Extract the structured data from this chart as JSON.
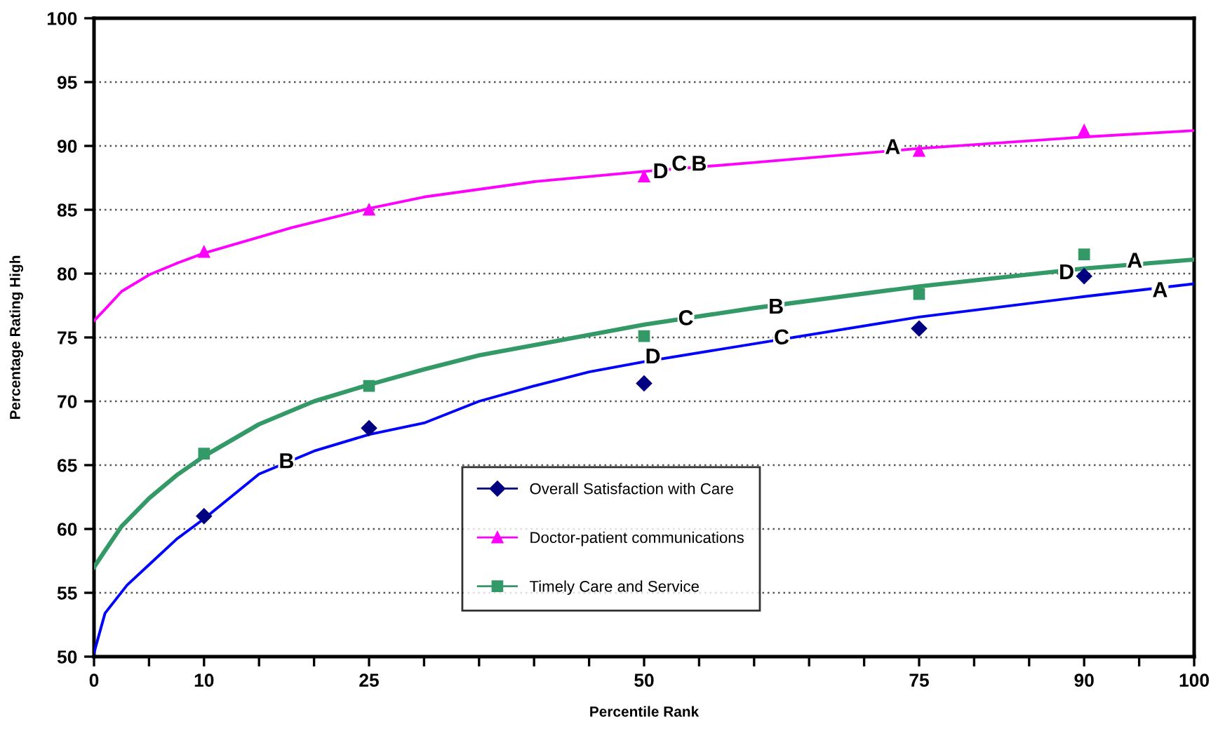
{
  "chart_data": {
    "type": "scatter",
    "xlabel": "Percentile Rank",
    "ylabel": "Percentage Rating High",
    "xlim": [
      0,
      100
    ],
    "ylim": [
      50,
      100
    ],
    "xticks": [
      0,
      {
        "value": 5,
        "label": null
      },
      10,
      {
        "value": 15,
        "label": null
      },
      {
        "value": 20,
        "label": null
      },
      25,
      {
        "value": 30,
        "label": null
      },
      {
        "value": 35,
        "label": null
      },
      {
        "value": 40,
        "label": null
      },
      {
        "value": 45,
        "label": null
      },
      50,
      {
        "value": 55,
        "label": null
      },
      {
        "value": 60,
        "label": null
      },
      {
        "value": 65,
        "label": null
      },
      {
        "value": 70,
        "label": null
      },
      75,
      {
        "value": 80,
        "label": null
      },
      {
        "value": 85,
        "label": null
      },
      90,
      {
        "value": 95,
        "label": null
      },
      100
    ],
    "yticks": [
      50,
      55,
      60,
      65,
      70,
      75,
      80,
      85,
      90,
      95,
      100
    ],
    "grid": "y",
    "legend": "bottom",
    "series": [
      {
        "name": "Overall Satisfaction with Care",
        "marker": "diamond",
        "color": "#000080",
        "x": [
          10,
          25,
          50,
          75,
          90
        ],
        "values": [
          61.0,
          67.9,
          71.4,
          75.7,
          79.8
        ]
      },
      {
        "name": "Doctor-patient communications",
        "marker": "triangle",
        "color": "#ff00ff",
        "x": [
          10,
          25,
          50,
          75,
          90
        ],
        "values": [
          81.7,
          85.0,
          87.6,
          89.6,
          91.2
        ]
      },
      {
        "name": "Timely Care and Service",
        "marker": "square",
        "color": "#339966",
        "x": [
          10,
          25,
          50,
          75,
          90
        ],
        "values": [
          65.9,
          71.2,
          75.1,
          78.4,
          81.5
        ]
      },
      {
        "type": "line",
        "marker": "none",
        "line_style": "solid",
        "color": "#0000ff",
        "x": [
          0,
          1,
          3,
          5,
          7.5,
          10,
          15,
          20,
          25,
          30,
          35,
          40,
          45,
          50,
          75,
          90,
          100
        ],
        "values": [
          50.3,
          53.4,
          55.6,
          57.2,
          59.2,
          60.8,
          64.3,
          66.1,
          67.4,
          68.3,
          70.0,
          71.2,
          72.3,
          73.1,
          76.6,
          78.2,
          79.2
        ]
      },
      {
        "type": "line",
        "marker": "none",
        "line_style": "solid",
        "color": "#ff00ff",
        "x": [
          0,
          1,
          2.5,
          5,
          7.5,
          10,
          18,
          25,
          30,
          40,
          50,
          60,
          75,
          90,
          100
        ],
        "values": [
          76.3,
          77.2,
          78.6,
          79.9,
          80.8,
          81.6,
          83.6,
          85.1,
          86.0,
          87.2,
          88.0,
          88.7,
          89.8,
          90.7,
          91.2
        ]
      },
      {
        "type": "line",
        "marker": "none",
        "line_style": "solid",
        "color": "#339966",
        "x": [
          0,
          1,
          2.5,
          5,
          7.5,
          10,
          15,
          20,
          25,
          30,
          35,
          40,
          50,
          60,
          75,
          90,
          100
        ],
        "values": [
          57.0,
          58.3,
          60.2,
          62.4,
          64.2,
          65.7,
          68.2,
          70.0,
          71.3,
          72.5,
          73.6,
          74.4,
          76.0,
          77.3,
          79.0,
          80.4,
          81.1
        ]
      }
    ],
    "annotations": [
      {
        "text": "D",
        "x": 51.5,
        "y": 87.9
      },
      {
        "text": "C",
        "x": 53.2,
        "y": 88.5
      },
      {
        "text": "B",
        "x": 55.0,
        "y": 88.5
      },
      {
        "text": "A",
        "x": 72.6,
        "y": 89.8
      },
      {
        "text": "C",
        "x": 53.8,
        "y": 76.4
      },
      {
        "text": "B",
        "x": 62.0,
        "y": 77.3
      },
      {
        "text": "D",
        "x": 88.4,
        "y": 80.0
      },
      {
        "text": "A",
        "x": 94.6,
        "y": 80.9
      },
      {
        "text": "B",
        "x": 17.5,
        "y": 65.2
      },
      {
        "text": "D",
        "x": 50.8,
        "y": 73.4
      },
      {
        "text": "C",
        "x": 62.5,
        "y": 74.9
      },
      {
        "text": "A",
        "x": 96.9,
        "y": 78.6
      }
    ]
  }
}
